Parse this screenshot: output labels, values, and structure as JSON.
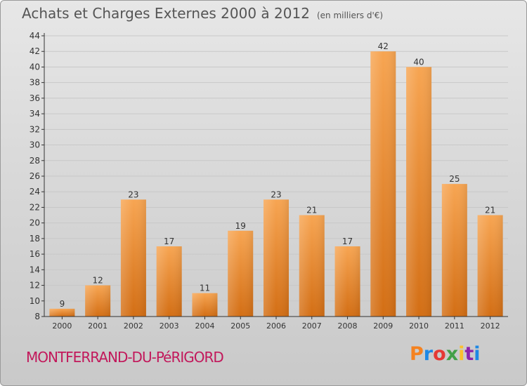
{
  "header": {
    "title": "Achats et Charges Externes 2000 à 2012",
    "subtitle": "(en milliers d'€)"
  },
  "footer": {
    "commune": "MONTFERRAND-DU-PéRIGORD",
    "logo_text": "Proxiti",
    "logo_colors": [
      "#f5821f",
      "#1e88e5",
      "#e53935",
      "#43a047",
      "#fbc02d",
      "#8e24aa",
      "#1e88e5"
    ]
  },
  "colors": {
    "bar_top": "#f7a552",
    "bar_bottom": "#d36e14",
    "axis": "#333333",
    "grid": "#c8c8c8",
    "text": "#333333",
    "commune": "#c2185b"
  },
  "chart_data": {
    "type": "bar",
    "title": "Achats et Charges Externes 2000 à 2012",
    "subtitle": "(en milliers d'€)",
    "categories": [
      "2000",
      "2001",
      "2002",
      "2003",
      "2004",
      "2005",
      "2006",
      "2007",
      "2008",
      "2009",
      "2010",
      "2011",
      "2012"
    ],
    "values": [
      9,
      12,
      23,
      17,
      11,
      19,
      23,
      21,
      17,
      42,
      40,
      25,
      21
    ],
    "ylim": [
      8,
      44
    ],
    "yticks": [
      8,
      10,
      12,
      14,
      16,
      18,
      20,
      22,
      24,
      26,
      28,
      30,
      32,
      34,
      36,
      38,
      40,
      42,
      44
    ],
    "grid": true,
    "data_labels": true
  }
}
